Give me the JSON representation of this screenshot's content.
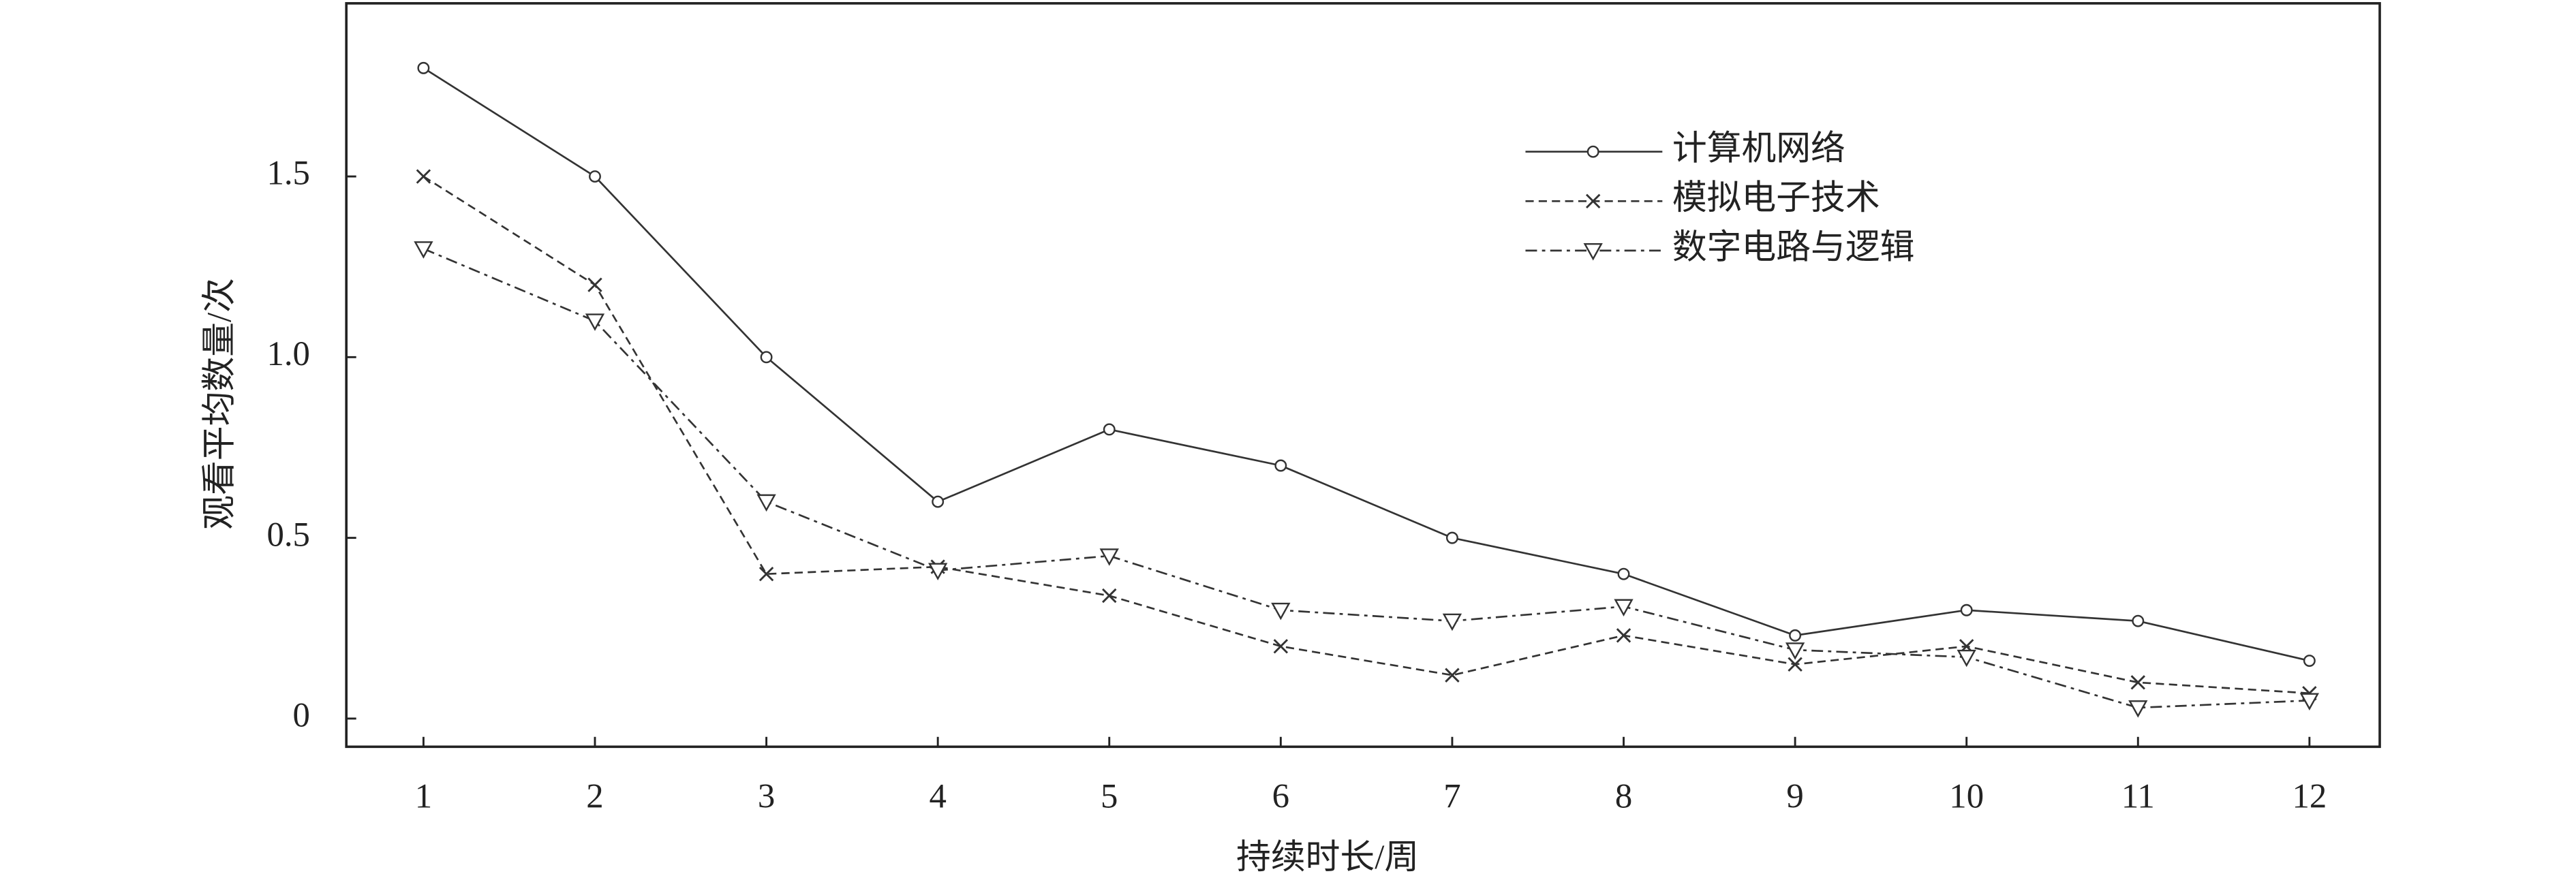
{
  "chart_data": {
    "type": "line",
    "xlabel": "持续时长/周",
    "ylabel": "观看平均数量/次",
    "x": [
      1,
      2,
      3,
      4,
      5,
      6,
      7,
      8,
      9,
      10,
      11,
      12
    ],
    "xlim": [
      0.55,
      12.41
    ],
    "xticks": [
      1,
      2,
      3,
      4,
      5,
      6,
      7,
      8,
      9,
      10,
      11,
      12
    ],
    "ylim": [
      -0.078,
      1.979
    ],
    "yticks": [
      0,
      0.5,
      {
        "value": 1,
        "label": "1.0"
      },
      1.5
    ],
    "grid": false,
    "legend": "upper right",
    "series": [
      {
        "name": "计算机网络",
        "color": "#333333",
        "marker": "circle",
        "dash": "solid",
        "values": [
          1.8,
          1.5,
          1.0,
          0.6,
          0.8,
          0.7,
          0.5,
          0.4,
          0.23,
          0.3,
          0.27,
          0.16
        ]
      },
      {
        "name": "模拟电子技术",
        "color": "#333333",
        "marker": "x",
        "dash": "dashed",
        "values": [
          1.5,
          1.2,
          0.4,
          0.42,
          0.34,
          0.2,
          0.12,
          0.23,
          0.15,
          0.2,
          0.1,
          0.07
        ]
      },
      {
        "name": "数字电路与逻辑",
        "color": "#333333",
        "marker": "triangle",
        "dash": "dashdot",
        "values": [
          1.3,
          1.1,
          0.6,
          0.41,
          0.45,
          0.3,
          0.27,
          0.31,
          0.19,
          0.17,
          0.03,
          0.05
        ]
      }
    ]
  }
}
